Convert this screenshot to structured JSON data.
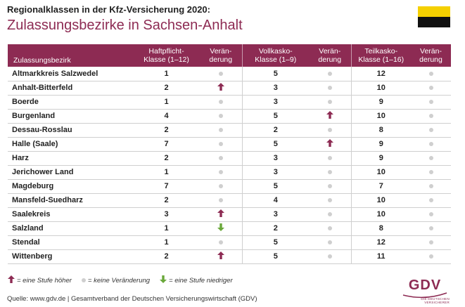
{
  "header": {
    "subtitle": "Regionalklassen in der Kfz-Versicherung 2020:",
    "title": "Zulassungsbezirke in Sachsen-Anhalt"
  },
  "flag": {
    "colors": [
      "#f5d000",
      "#111111"
    ]
  },
  "colors": {
    "accent": "#8d2b53",
    "up": "#8d2b53",
    "down": "#6aa83a",
    "neutral": "#cfcfcf"
  },
  "table": {
    "headers": {
      "name": "Zulassungsbezirk",
      "haft": "Haftpflicht-\nKlasse (1–12)",
      "haft_change": "Verän-\nderung",
      "voll": "Vollkasko-\nKlasse (1–9)",
      "voll_change": "Verän-\nderung",
      "teil": "Teilkasko-\nKlasse (1–16)",
      "teil_change": "Verän-\nderung"
    },
    "rows": [
      {
        "name": "Altmarkkreis Salzwedel",
        "haft": "1",
        "haft_change": "none",
        "voll": "5",
        "voll_change": "none",
        "teil": "12",
        "teil_change": "none"
      },
      {
        "name": "Anhalt-Bitterfeld",
        "haft": "2",
        "haft_change": "up",
        "voll": "3",
        "voll_change": "none",
        "teil": "10",
        "teil_change": "none"
      },
      {
        "name": "Boerde",
        "haft": "1",
        "haft_change": "none",
        "voll": "3",
        "voll_change": "none",
        "teil": "9",
        "teil_change": "none"
      },
      {
        "name": "Burgenland",
        "haft": "4",
        "haft_change": "none",
        "voll": "5",
        "voll_change": "up",
        "teil": "10",
        "teil_change": "none"
      },
      {
        "name": "Dessau-Rosslau",
        "haft": "2",
        "haft_change": "none",
        "voll": "2",
        "voll_change": "none",
        "teil": "8",
        "teil_change": "none"
      },
      {
        "name": "Halle (Saale)",
        "haft": "7",
        "haft_change": "none",
        "voll": "5",
        "voll_change": "up",
        "teil": "9",
        "teil_change": "none"
      },
      {
        "name": "Harz",
        "haft": "2",
        "haft_change": "none",
        "voll": "3",
        "voll_change": "none",
        "teil": "9",
        "teil_change": "none"
      },
      {
        "name": "Jerichower Land",
        "haft": "1",
        "haft_change": "none",
        "voll": "3",
        "voll_change": "none",
        "teil": "10",
        "teil_change": "none"
      },
      {
        "name": "Magdeburg",
        "haft": "7",
        "haft_change": "none",
        "voll": "5",
        "voll_change": "none",
        "teil": "7",
        "teil_change": "none"
      },
      {
        "name": "Mansfeld-Suedharz",
        "haft": "2",
        "haft_change": "none",
        "voll": "4",
        "voll_change": "none",
        "teil": "10",
        "teil_change": "none"
      },
      {
        "name": "Saalekreis",
        "haft": "3",
        "haft_change": "up",
        "voll": "3",
        "voll_change": "none",
        "teil": "10",
        "teil_change": "none"
      },
      {
        "name": "Salzland",
        "haft": "1",
        "haft_change": "down",
        "voll": "2",
        "voll_change": "none",
        "teil": "8",
        "teil_change": "none"
      },
      {
        "name": "Stendal",
        "haft": "1",
        "haft_change": "none",
        "voll": "5",
        "voll_change": "none",
        "teil": "12",
        "teil_change": "none"
      },
      {
        "name": "Wittenberg",
        "haft": "2",
        "haft_change": "up",
        "voll": "5",
        "voll_change": "none",
        "teil": "11",
        "teil_change": "none"
      }
    ]
  },
  "legend": {
    "up": "= eine Stufe höher",
    "none": "= keine Veränderung",
    "down": "= eine Stufe niedriger"
  },
  "source": "Quelle: www.gdv.de | Gesamtverband der Deutschen Versicherungswirtschaft (GDV)",
  "logo": {
    "text": "GDV",
    "subtext": "DIE DEUTSCHEN VERSICHERER"
  }
}
